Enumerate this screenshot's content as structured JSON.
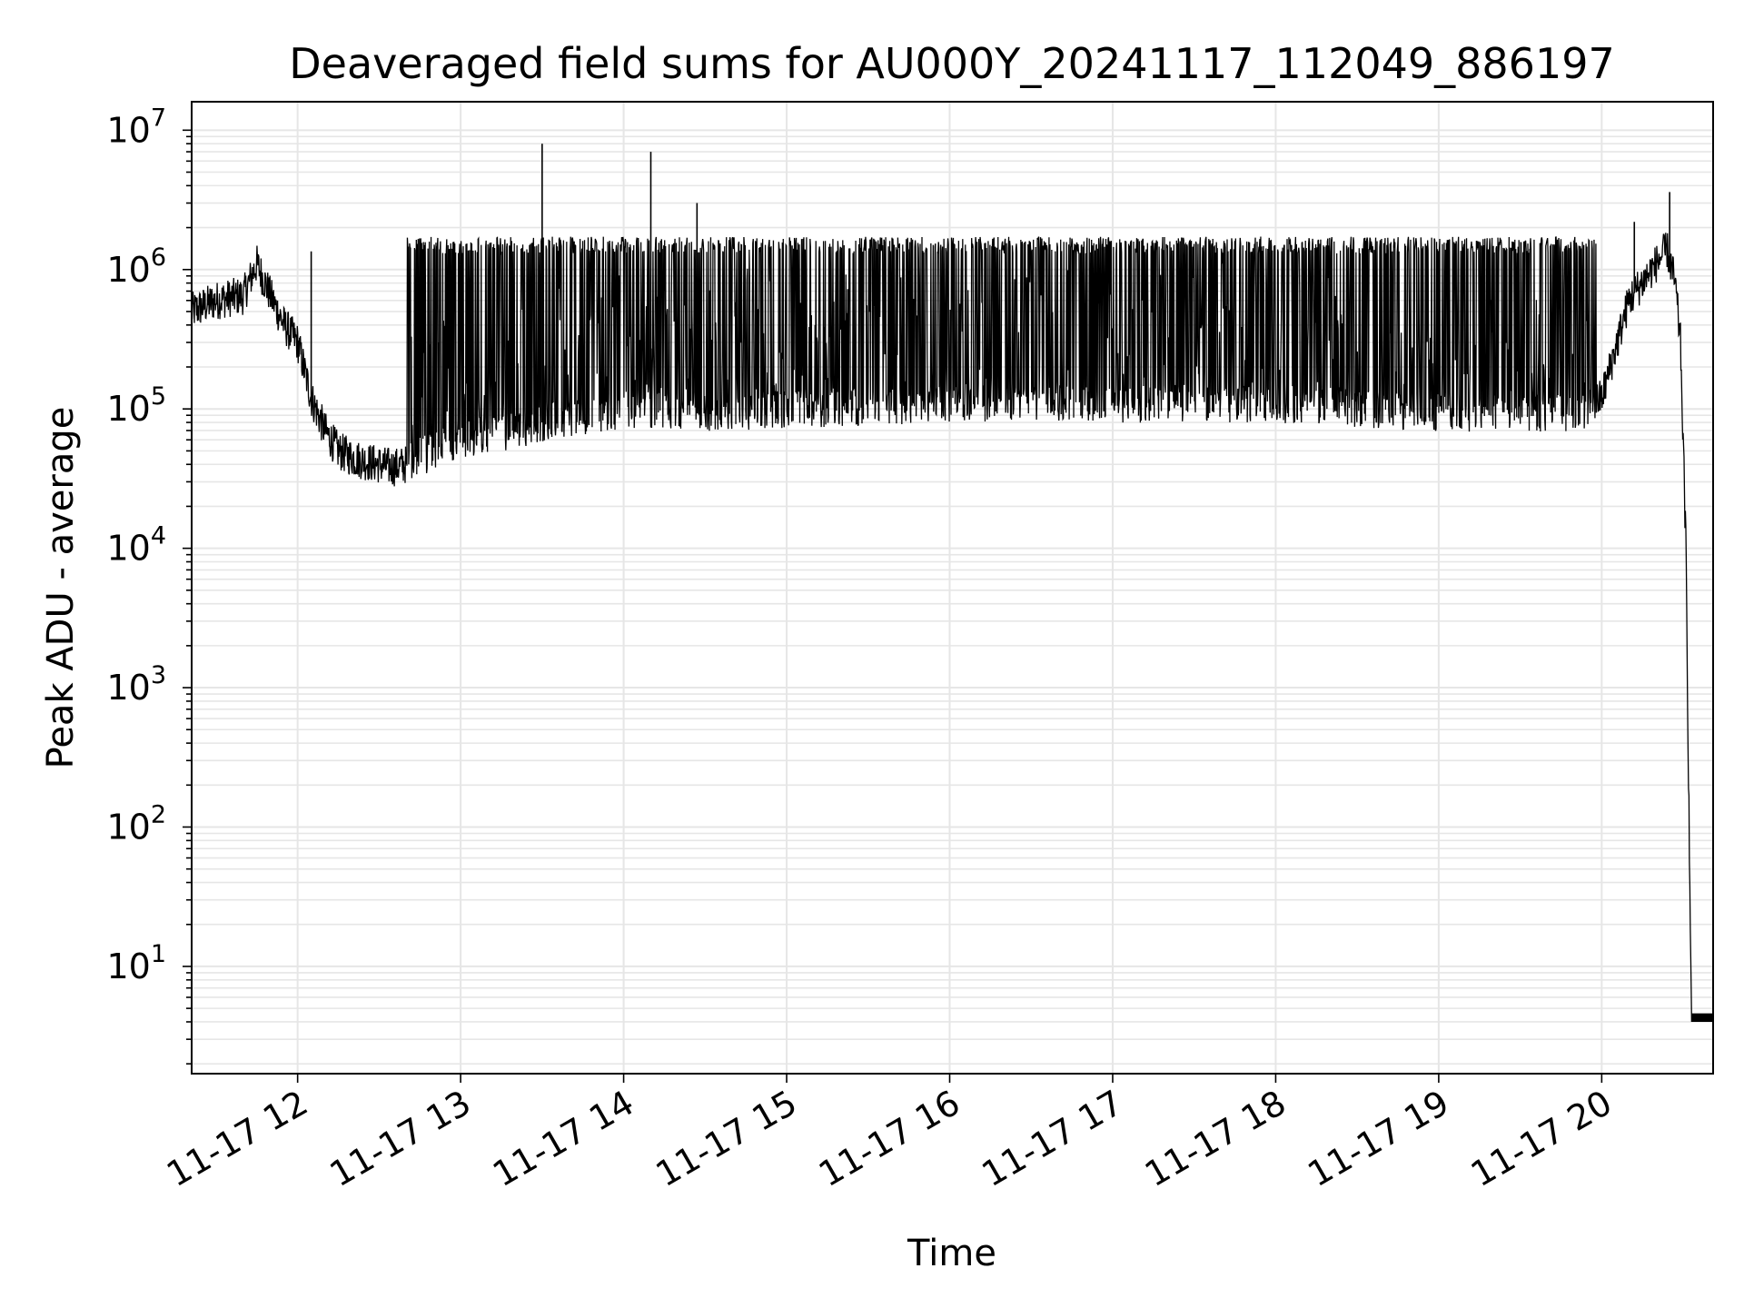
{
  "chart_data": {
    "type": "line",
    "title": "Deaveraged field sums for AU000Y_20241117_112049_886197",
    "xlabel": "Time",
    "ylabel": "Peak ADU - average",
    "yscale": "log",
    "ylim": [
      1.7,
      16000000
    ],
    "xlim": [
      "2024-11-17 11:21",
      "2024-11-17 20:41"
    ],
    "grid": true,
    "line_color": "#000000",
    "grid_color": "#e6e6e6",
    "x_tick_labels": [
      "11-17 12",
      "11-17 13",
      "11-17 14",
      "11-17 15",
      "11-17 16",
      "11-17 17",
      "11-17 18",
      "11-17 19",
      "11-17 20"
    ],
    "y_tick_labels": [
      {
        "base": "10",
        "exp": "1",
        "value": 10
      },
      {
        "base": "10",
        "exp": "2",
        "value": 100
      },
      {
        "base": "10",
        "exp": "3",
        "value": 1000
      },
      {
        "base": "10",
        "exp": "4",
        "value": 10000
      },
      {
        "base": "10",
        "exp": "5",
        "value": 100000
      },
      {
        "base": "10",
        "exp": "6",
        "value": 1000000
      },
      {
        "base": "10",
        "exp": "7",
        "value": 10000000
      }
    ],
    "series": [
      {
        "x": [
          "2024-11-17 11:21",
          "2024-11-17 11:30",
          "2024-11-17 11:40",
          "2024-11-17 11:45",
          "2024-11-17 11:50",
          "2024-11-17 11:55",
          "2024-11-17 12:00",
          "2024-11-17 12:05",
          "2024-11-17 12:10",
          "2024-11-17 12:15",
          "2024-11-17 12:20",
          "2024-11-17 12:25",
          "2024-11-17 12:30",
          "2024-11-17 12:35",
          "2024-11-17 12:40",
          "2024-11-17 12:45",
          "2024-11-17 12:50",
          "2024-11-17 13:00",
          "2024-11-17 13:10",
          "2024-11-17 13:20",
          "2024-11-17 13:30",
          "2024-11-17 13:45",
          "2024-11-17 14:00",
          "2024-11-17 14:15",
          "2024-11-17 14:30",
          "2024-11-17 15:00",
          "2024-11-17 15:30",
          "2024-11-17 16:00",
          "2024-11-17 16:30",
          "2024-11-17 17:00",
          "2024-11-17 17:30",
          "2024-11-17 18:00",
          "2024-11-17 18:30",
          "2024-11-17 19:00",
          "2024-11-17 19:30",
          "2024-11-17 19:50",
          "2024-11-17 20:00",
          "2024-11-17 20:10",
          "2024-11-17 20:20",
          "2024-11-17 20:24",
          "2024-11-17 20:27",
          "2024-11-17 20:29",
          "2024-11-17 20:31",
          "2024-11-17 20:33",
          "2024-11-17 20:41"
        ],
        "y": [
          500000,
          600000,
          650000,
          1100000,
          650000,
          400000,
          300000,
          120000,
          70000,
          50000,
          45000,
          42000,
          40000,
          38000,
          40000,
          45000,
          50000,
          60000,
          65000,
          70000,
          80000,
          90000,
          100000,
          100000,
          95000,
          100000,
          105000,
          110000,
          115000,
          110000,
          110000,
          110000,
          100000,
          95000,
          95000,
          90000,
          120000,
          600000,
          1100000,
          1400000,
          800000,
          300000,
          10000,
          4,
          4
        ]
      }
    ],
    "spike_band": {
      "x_range": [
        "2024-11-17 12:40",
        "2024-11-17 19:58"
      ],
      "upper_value": 1500000
    },
    "spikes": [
      {
        "x": "2024-11-17 12:05",
        "y": 1350000
      },
      {
        "x": "2024-11-17 13:30",
        "y": 8000000
      },
      {
        "x": "2024-11-17 14:10",
        "y": 7000000
      },
      {
        "x": "2024-11-17 14:27",
        "y": 3000000
      },
      {
        "x": "2024-11-17 20:12",
        "y": 2200000
      },
      {
        "x": "2024-11-17 20:25",
        "y": 3600000
      }
    ]
  }
}
